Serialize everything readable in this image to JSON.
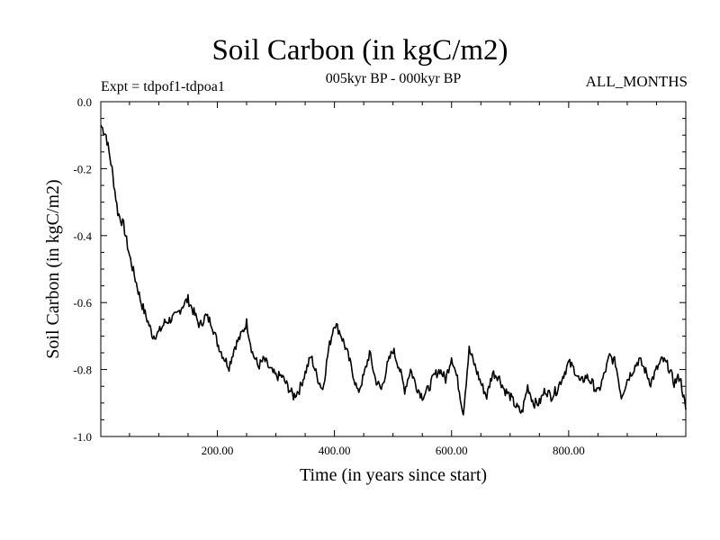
{
  "header": {
    "title": "Soil Carbon (in kgC/m2)",
    "subtitle": "005kyr BP - 000kyr BP",
    "experiment": "Expt = tdpof1-tdpoa1",
    "months": "ALL_MONTHS"
  },
  "chart_data": {
    "type": "line",
    "title": "Soil Carbon (in kgC/m2)",
    "subtitle": "005kyr BP - 000kyr BP",
    "xlabel": "Time (in years since start)",
    "ylabel": "Soil Carbon (in kgC/m2)",
    "xlim": [
      1,
      1000
    ],
    "ylim": [
      -1.0,
      0.0
    ],
    "x_ticks": [
      200,
      400,
      600,
      800
    ],
    "x_tick_labels": [
      "200.00",
      "400.00",
      "600.00",
      "800.00"
    ],
    "y_ticks": [
      0.0,
      -0.2,
      -0.4,
      -0.6,
      -0.8,
      -1.0
    ],
    "y_tick_labels": [
      "0.0",
      "-0.2",
      "-0.4",
      "-0.6",
      "-0.8",
      "-1.0"
    ],
    "grid": false,
    "series": [
      {
        "name": "tdpof1-tdpoa1",
        "color": "#000000",
        "x": [
          1,
          10,
          20,
          30,
          40,
          50,
          60,
          70,
          80,
          90,
          100,
          110,
          120,
          130,
          140,
          150,
          160,
          170,
          180,
          190,
          200,
          210,
          220,
          230,
          240,
          250,
          260,
          270,
          280,
          290,
          300,
          310,
          320,
          330,
          340,
          350,
          360,
          370,
          380,
          390,
          400,
          410,
          420,
          430,
          440,
          450,
          460,
          470,
          480,
          490,
          500,
          510,
          520,
          530,
          540,
          550,
          560,
          570,
          580,
          590,
          600,
          610,
          620,
          630,
          640,
          650,
          660,
          670,
          680,
          690,
          700,
          710,
          720,
          730,
          740,
          750,
          760,
          770,
          780,
          790,
          800,
          810,
          820,
          830,
          840,
          850,
          860,
          870,
          880,
          890,
          900,
          910,
          920,
          930,
          940,
          950,
          960,
          970,
          980,
          990,
          1000
        ],
        "values": [
          -0.07,
          -0.1,
          -0.2,
          -0.33,
          -0.37,
          -0.46,
          -0.53,
          -0.6,
          -0.65,
          -0.7,
          -0.69,
          -0.66,
          -0.65,
          -0.64,
          -0.61,
          -0.59,
          -0.63,
          -0.67,
          -0.64,
          -0.66,
          -0.72,
          -0.76,
          -0.79,
          -0.73,
          -0.7,
          -0.66,
          -0.75,
          -0.79,
          -0.77,
          -0.8,
          -0.82,
          -0.82,
          -0.85,
          -0.88,
          -0.86,
          -0.81,
          -0.76,
          -0.82,
          -0.86,
          -0.74,
          -0.66,
          -0.69,
          -0.74,
          -0.8,
          -0.87,
          -0.82,
          -0.75,
          -0.83,
          -0.86,
          -0.79,
          -0.74,
          -0.79,
          -0.86,
          -0.8,
          -0.85,
          -0.88,
          -0.86,
          -0.82,
          -0.8,
          -0.83,
          -0.76,
          -0.83,
          -0.93,
          -0.74,
          -0.79,
          -0.84,
          -0.88,
          -0.81,
          -0.82,
          -0.86,
          -0.88,
          -0.91,
          -0.93,
          -0.85,
          -0.9,
          -0.9,
          -0.86,
          -0.88,
          -0.86,
          -0.82,
          -0.78,
          -0.8,
          -0.84,
          -0.82,
          -0.84,
          -0.87,
          -0.82,
          -0.76,
          -0.78,
          -0.88,
          -0.83,
          -0.8,
          -0.77,
          -0.8,
          -0.84,
          -0.8,
          -0.77,
          -0.79,
          -0.84,
          -0.82,
          -0.92
        ]
      }
    ]
  }
}
